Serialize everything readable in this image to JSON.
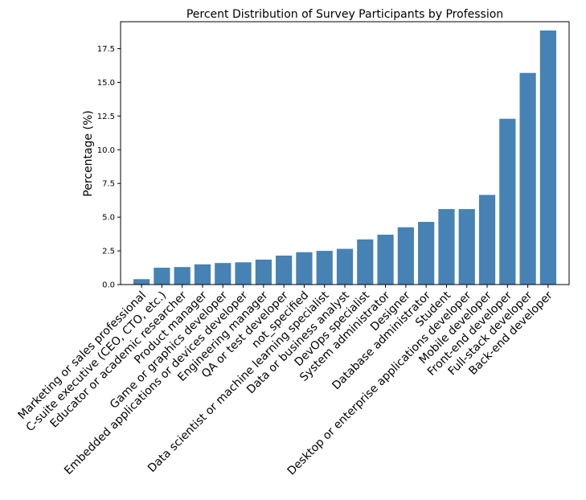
{
  "chart_data": {
    "type": "bar",
    "title": "Percent Distribution of Survey Participants by Profession",
    "xlabel": "",
    "ylabel": "Percentage (%)",
    "ylim": [
      0,
      19.5
    ],
    "yticks": [
      "0.0",
      "2.5",
      "5.0",
      "7.5",
      "10.0",
      "12.5",
      "15.0",
      "17.5"
    ],
    "ytick_values": [
      0,
      2.5,
      5,
      7.5,
      10,
      12.5,
      15,
      17.5
    ],
    "grid": false,
    "bar_color": "#4682b4",
    "categories": [
      "Marketing or sales professional",
      "C-suite executive (CEO, CTO, etc.)",
      "Educator or academic researcher",
      "Product manager",
      "Game or graphics developer",
      "Embedded applications or devices developer",
      "Engineering manager",
      "QA or test developer",
      "not_specified",
      "Data scientist or machine learning specialist",
      "Data or business analyst",
      "DevOps specialist",
      "System administrator",
      "Designer",
      "Database administrator",
      "Student",
      "Desktop or enterprise applications developer",
      "Mobile developer",
      "Front-end developer",
      "Full-stack developer",
      "Back-end developer"
    ],
    "values": [
      0.4,
      1.25,
      1.3,
      1.5,
      1.6,
      1.65,
      1.85,
      2.15,
      2.4,
      2.5,
      2.65,
      3.35,
      3.7,
      4.25,
      4.65,
      5.6,
      5.6,
      6.65,
      12.3,
      15.7,
      18.85
    ]
  }
}
